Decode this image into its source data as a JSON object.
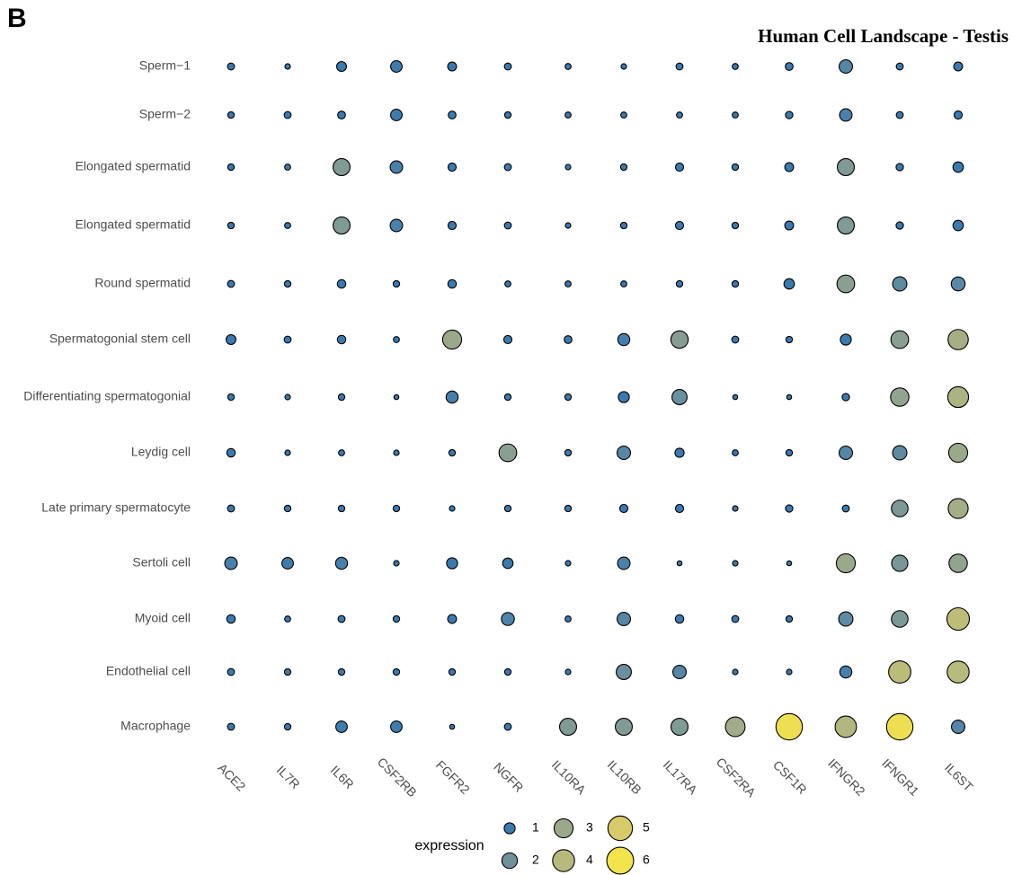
{
  "chart_data": {
    "type": "dot",
    "panel_label": "B",
    "title": "Human Cell Landscape - Testis",
    "rows": [
      "Sperm−1",
      "Sperm−2",
      "Elongated spermatid",
      "Elongated spermatid",
      "Round spermatid",
      "Spermatogonial stem cell",
      "Differentiating spermatogonial",
      "Leydig cell",
      "Late primary spermatocyte",
      "Sertoli cell",
      "Myoid cell",
      "Endothelial cell",
      "Macrophage"
    ],
    "columns": [
      "ACE2",
      "IL7R",
      "IL6R",
      "CSF2RB",
      "FGFR2",
      "NGFR",
      "IL10RA",
      "IL10RB",
      "IL17RA",
      "CSF2RA",
      "CSF1R",
      "IFNGR2",
      "IFNGR1",
      "IL6ST"
    ],
    "values": [
      [
        0.4,
        0.25,
        0.8,
        1.1,
        0.65,
        0.4,
        0.3,
        0.25,
        0.4,
        0.3,
        0.5,
        1.5,
        0.4,
        0.65
      ],
      [
        0.35,
        0.4,
        0.5,
        1.1,
        0.5,
        0.35,
        0.3,
        0.3,
        0.3,
        0.3,
        0.45,
        1.3,
        0.4,
        0.55
      ],
      [
        0.35,
        0.3,
        2.4,
        1.3,
        0.55,
        0.4,
        0.25,
        0.35,
        0.55,
        0.35,
        0.65,
        2.4,
        0.45,
        0.9
      ],
      [
        0.35,
        0.3,
        2.4,
        1.3,
        0.55,
        0.4,
        0.25,
        0.35,
        0.55,
        0.35,
        0.65,
        2.4,
        0.45,
        0.9
      ],
      [
        0.4,
        0.35,
        0.6,
        0.35,
        0.6,
        0.3,
        0.3,
        0.3,
        0.35,
        0.35,
        0.9,
        2.6,
        1.7,
        1.6
      ],
      [
        0.8,
        0.4,
        0.6,
        0.3,
        3.0,
        0.55,
        0.5,
        1.2,
        2.5,
        0.4,
        0.35,
        1.0,
        2.6,
        3.4
      ],
      [
        0.35,
        0.25,
        0.35,
        0.2,
        1.2,
        0.35,
        0.35,
        1.0,
        1.9,
        0.2,
        0.2,
        0.45,
        2.8,
        3.6
      ],
      [
        0.6,
        0.25,
        0.3,
        0.25,
        0.35,
        2.6,
        0.35,
        1.5,
        0.7,
        0.3,
        0.35,
        1.5,
        1.7,
        3.0
      ],
      [
        0.4,
        0.35,
        0.35,
        0.35,
        0.25,
        0.35,
        0.35,
        0.55,
        0.55,
        0.25,
        0.45,
        0.4,
        2.3,
        3.3
      ],
      [
        1.3,
        1.1,
        1.2,
        0.25,
        1.0,
        0.9,
        0.25,
        1.3,
        0.2,
        0.25,
        0.2,
        3.0,
        2.2,
        2.8
      ],
      [
        0.6,
        0.3,
        0.4,
        0.35,
        0.65,
        1.4,
        0.3,
        1.5,
        0.6,
        0.4,
        0.35,
        1.7,
        2.3,
        4.2
      ],
      [
        0.4,
        0.35,
        0.35,
        0.35,
        0.35,
        0.35,
        0.25,
        1.9,
        1.5,
        0.25,
        0.25,
        1.2,
        4.1,
        4.0
      ],
      [
        0.4,
        0.35,
        1.1,
        1.1,
        0.2,
        0.4,
        2.4,
        2.4,
        2.4,
        3.2,
        5.8,
        3.8,
        5.8,
        1.5
      ]
    ],
    "legend": {
      "title": "expression",
      "values": [
        1,
        2,
        3,
        4,
        5,
        6
      ]
    },
    "color_stops": [
      {
        "value": 1,
        "color": "#3a7ab0"
      },
      {
        "value": 2,
        "color": "#6f919c"
      },
      {
        "value": 3,
        "color": "#9aa98a"
      },
      {
        "value": 4,
        "color": "#b8b97c"
      },
      {
        "value": 5,
        "color": "#d6cb68"
      },
      {
        "value": 6,
        "color": "#f3e34c"
      }
    ]
  }
}
